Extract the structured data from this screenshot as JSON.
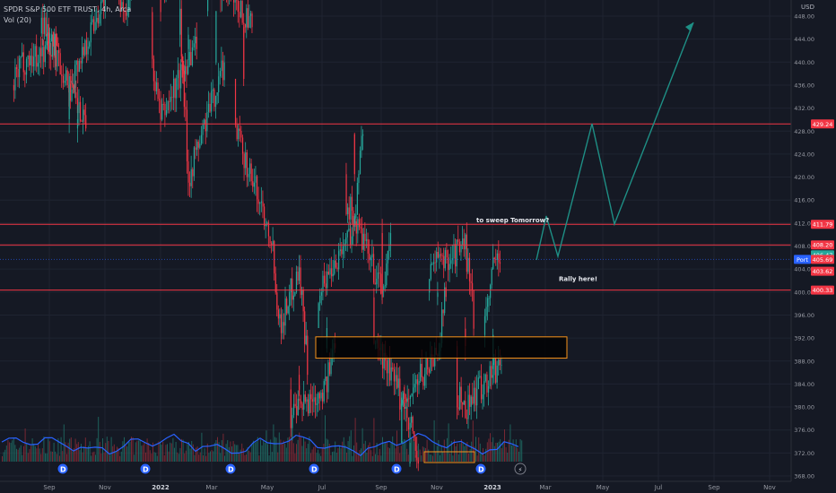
{
  "legend": {
    "symbol_line": "SPDR S&P 500 ETF TRUST, 4h, Arca",
    "volume_line": "Vol (20)"
  },
  "chart_data": {
    "type": "candlestick",
    "currency_label": "USD",
    "y_ticks": [
      448,
      444,
      440,
      436,
      432,
      428,
      424,
      420,
      416,
      412,
      408,
      404,
      400,
      396,
      392,
      388,
      384,
      380,
      376,
      372,
      368
    ],
    "x_ticks": [
      "Sep",
      "Nov",
      "2022",
      "Mar",
      "May",
      "Jul",
      "Sep",
      "Nov",
      "2023",
      "Mar",
      "May",
      "Jul",
      "Sep",
      "Nov"
    ],
    "ylim": [
      367,
      449
    ],
    "horizontal_levels": [
      {
        "value": 429.24,
        "label": "429.24",
        "color": "#f23645"
      },
      {
        "value": 411.79,
        "label": "411.79",
        "color": "#f23645"
      },
      {
        "value": 408.2,
        "label": "408.20",
        "color": "#f23645"
      },
      {
        "value": 400.33,
        "label": "400.33",
        "color": "#f23645"
      }
    ],
    "price_badges": [
      {
        "value": 406.47,
        "label": "406.47",
        "color": "#26a69a"
      },
      {
        "value": 405.69,
        "label": "405.69",
        "color": "#f23645"
      },
      {
        "value": 403.62,
        "label": "403.62",
        "color": "#f23645"
      }
    ],
    "port_badge": {
      "text": "Port",
      "value": 405.69,
      "color": "#2962ff"
    },
    "demand_zone": {
      "x_from": "2022-07",
      "x_to": "2023-03",
      "y_from": 388.5,
      "y_to": 392.2
    },
    "annotations": [
      {
        "text": "to sweep Tomorrow?",
        "x": "2022-12",
        "y": 412.1
      },
      {
        "text": "Rally here!",
        "x": "2023-03",
        "y": 403.2
      }
    ],
    "projection_path": [
      {
        "x": "2023-01",
        "y": 405.0
      },
      {
        "x": "2023-02",
        "y": 413.0
      },
      {
        "x": "2023-02",
        "y": 405.0
      },
      {
        "x": "2023-04",
        "y": 429.0
      },
      {
        "x": "2023-05",
        "y": 412.0
      },
      {
        "x": "2023-08",
        "y": 446.0
      }
    ],
    "price_path": [
      {
        "x": "2021-08",
        "y": 436
      },
      {
        "x": "2021-08",
        "y": 440
      },
      {
        "x": "2021-09",
        "y": 443
      },
      {
        "x": "2021-09",
        "y": 448
      },
      {
        "x": "2021-10",
        "y": 432
      },
      {
        "x": "2021-10",
        "y": 428
      },
      {
        "x": "2021-10",
        "y": 436
      },
      {
        "x": "2021-11",
        "y": 452
      },
      {
        "x": "2021-11",
        "y": 455
      },
      {
        "x": "2021-12",
        "y": 449
      },
      {
        "x": "2021-12",
        "y": 456
      },
      {
        "x": "2022-01",
        "y": 454
      },
      {
        "x": "2022-01",
        "y": 440
      },
      {
        "x": "2022-01",
        "y": 430
      },
      {
        "x": "2022-02",
        "y": 444
      },
      {
        "x": "2022-02",
        "y": 448
      },
      {
        "x": "2022-02",
        "y": 420
      },
      {
        "x": "2022-03",
        "y": 440
      },
      {
        "x": "2022-03",
        "y": 455
      },
      {
        "x": "2022-04",
        "y": 448
      },
      {
        "x": "2022-04",
        "y": 446
      },
      {
        "x": "2022-04",
        "y": 428
      },
      {
        "x": "2022-05",
        "y": 410
      },
      {
        "x": "2022-05",
        "y": 394
      },
      {
        "x": "2022-06",
        "y": 400
      },
      {
        "x": "2022-06",
        "y": 404
      },
      {
        "x": "2022-06",
        "y": 388
      },
      {
        "x": "2022-06",
        "y": 378
      },
      {
        "x": "2022-07",
        "y": 384
      },
      {
        "x": "2022-07",
        "y": 392
      },
      {
        "x": "2022-07",
        "y": 400
      },
      {
        "x": "2022-08",
        "y": 412
      },
      {
        "x": "2022-08",
        "y": 428
      },
      {
        "x": "2022-08",
        "y": 416
      },
      {
        "x": "2022-09",
        "y": 400
      },
      {
        "x": "2022-09",
        "y": 408
      },
      {
        "x": "2022-09",
        "y": 392
      },
      {
        "x": "2022-10",
        "y": 378
      },
      {
        "x": "2022-10",
        "y": 370
      },
      {
        "x": "2022-10",
        "y": 380
      },
      {
        "x": "2022-11",
        "y": 390
      },
      {
        "x": "2022-11",
        "y": 400
      },
      {
        "x": "2022-11",
        "y": 404
      },
      {
        "x": "2022-12",
        "y": 408
      },
      {
        "x": "2022-12",
        "y": 396
      },
      {
        "x": "2022-12",
        "y": 382
      },
      {
        "x": "2022-12",
        "y": 380
      },
      {
        "x": "2023-01",
        "y": 388
      },
      {
        "x": "2023-01",
        "y": 396
      },
      {
        "x": "2023-01",
        "y": 404
      },
      {
        "x": "2023-01",
        "y": 408
      }
    ],
    "volume_profile_note": "",
    "colors": {
      "up": "#26a69a",
      "down": "#f23645",
      "volume_ma": "#2962ff",
      "projection": "#1e8f85",
      "zone": "#f7931a"
    }
  }
}
